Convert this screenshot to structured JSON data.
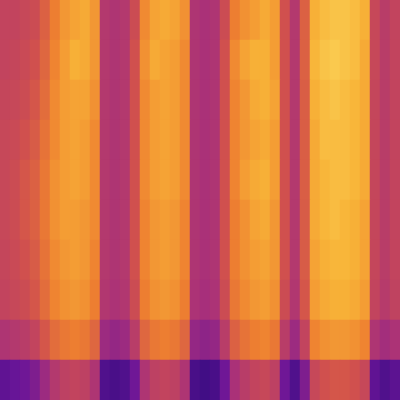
{
  "chart_data": {
    "type": "heatmap",
    "tick_labels": false,
    "zlim": [
      0,
      1
    ],
    "cells": [
      [
        0.44,
        0.44,
        0.46,
        0.48,
        0.56,
        0.66,
        0.74,
        0.78,
        0.8,
        0.74,
        0.38,
        0.36,
        0.38,
        0.48,
        0.7,
        0.78,
        0.8,
        0.78,
        0.72,
        0.36,
        0.34,
        0.36,
        0.48,
        0.66,
        0.72,
        0.76,
        0.8,
        0.76,
        0.5,
        0.38,
        0.56,
        0.82,
        0.86,
        0.88,
        0.88,
        0.86,
        0.82,
        0.46,
        0.4,
        0.44
      ],
      [
        0.44,
        0.45,
        0.47,
        0.5,
        0.58,
        0.68,
        0.76,
        0.82,
        0.8,
        0.74,
        0.38,
        0.36,
        0.38,
        0.5,
        0.72,
        0.8,
        0.78,
        0.76,
        0.7,
        0.36,
        0.34,
        0.36,
        0.5,
        0.7,
        0.78,
        0.82,
        0.82,
        0.76,
        0.5,
        0.38,
        0.56,
        0.84,
        0.88,
        0.9,
        0.88,
        0.86,
        0.8,
        0.46,
        0.4,
        0.44
      ],
      [
        0.45,
        0.46,
        0.48,
        0.52,
        0.6,
        0.7,
        0.76,
        0.78,
        0.78,
        0.72,
        0.38,
        0.36,
        0.38,
        0.5,
        0.7,
        0.76,
        0.78,
        0.76,
        0.7,
        0.36,
        0.34,
        0.36,
        0.5,
        0.68,
        0.74,
        0.8,
        0.82,
        0.78,
        0.5,
        0.38,
        0.55,
        0.82,
        0.86,
        0.88,
        0.86,
        0.84,
        0.8,
        0.45,
        0.4,
        0.44
      ],
      [
        0.46,
        0.47,
        0.5,
        0.54,
        0.62,
        0.7,
        0.76,
        0.78,
        0.76,
        0.7,
        0.38,
        0.36,
        0.38,
        0.5,
        0.7,
        0.76,
        0.78,
        0.76,
        0.7,
        0.36,
        0.34,
        0.36,
        0.5,
        0.68,
        0.74,
        0.78,
        0.8,
        0.76,
        0.5,
        0.38,
        0.55,
        0.8,
        0.86,
        0.86,
        0.86,
        0.84,
        0.8,
        0.45,
        0.4,
        0.44
      ],
      [
        0.46,
        0.48,
        0.52,
        0.56,
        0.64,
        0.72,
        0.76,
        0.78,
        0.76,
        0.7,
        0.38,
        0.36,
        0.38,
        0.5,
        0.7,
        0.76,
        0.78,
        0.76,
        0.7,
        0.36,
        0.34,
        0.36,
        0.5,
        0.68,
        0.76,
        0.8,
        0.82,
        0.76,
        0.5,
        0.38,
        0.55,
        0.8,
        0.84,
        0.86,
        0.86,
        0.84,
        0.8,
        0.45,
        0.4,
        0.44
      ],
      [
        0.46,
        0.48,
        0.52,
        0.56,
        0.64,
        0.72,
        0.76,
        0.76,
        0.74,
        0.7,
        0.38,
        0.36,
        0.38,
        0.5,
        0.68,
        0.74,
        0.76,
        0.74,
        0.68,
        0.36,
        0.34,
        0.36,
        0.5,
        0.66,
        0.72,
        0.78,
        0.8,
        0.74,
        0.5,
        0.38,
        0.54,
        0.8,
        0.84,
        0.86,
        0.84,
        0.82,
        0.78,
        0.45,
        0.4,
        0.44
      ],
      [
        0.45,
        0.47,
        0.5,
        0.54,
        0.62,
        0.7,
        0.74,
        0.76,
        0.74,
        0.68,
        0.38,
        0.36,
        0.38,
        0.5,
        0.68,
        0.74,
        0.76,
        0.74,
        0.68,
        0.36,
        0.34,
        0.36,
        0.5,
        0.66,
        0.72,
        0.76,
        0.78,
        0.74,
        0.5,
        0.38,
        0.54,
        0.78,
        0.82,
        0.84,
        0.84,
        0.82,
        0.78,
        0.45,
        0.4,
        0.44
      ],
      [
        0.44,
        0.46,
        0.48,
        0.52,
        0.6,
        0.68,
        0.72,
        0.74,
        0.72,
        0.66,
        0.37,
        0.35,
        0.37,
        0.48,
        0.66,
        0.72,
        0.74,
        0.72,
        0.66,
        0.35,
        0.33,
        0.35,
        0.48,
        0.64,
        0.7,
        0.74,
        0.76,
        0.72,
        0.48,
        0.37,
        0.52,
        0.76,
        0.8,
        0.82,
        0.82,
        0.8,
        0.76,
        0.44,
        0.39,
        0.43
      ],
      [
        0.36,
        0.38,
        0.4,
        0.44,
        0.52,
        0.6,
        0.64,
        0.66,
        0.64,
        0.58,
        0.3,
        0.28,
        0.3,
        0.4,
        0.58,
        0.64,
        0.66,
        0.64,
        0.58,
        0.28,
        0.26,
        0.28,
        0.4,
        0.56,
        0.62,
        0.66,
        0.68,
        0.64,
        0.4,
        0.3,
        0.44,
        0.68,
        0.72,
        0.74,
        0.74,
        0.72,
        0.68,
        0.36,
        0.32,
        0.35
      ],
      [
        0.14,
        0.16,
        0.18,
        0.22,
        0.3,
        0.38,
        0.42,
        0.44,
        0.42,
        0.36,
        0.1,
        0.08,
        0.1,
        0.18,
        0.36,
        0.42,
        0.44,
        0.42,
        0.36,
        0.08,
        0.06,
        0.08,
        0.18,
        0.34,
        0.4,
        0.44,
        0.46,
        0.42,
        0.18,
        0.1,
        0.22,
        0.46,
        0.5,
        0.52,
        0.52,
        0.5,
        0.46,
        0.14,
        0.1,
        0.13
      ]
    ]
  }
}
